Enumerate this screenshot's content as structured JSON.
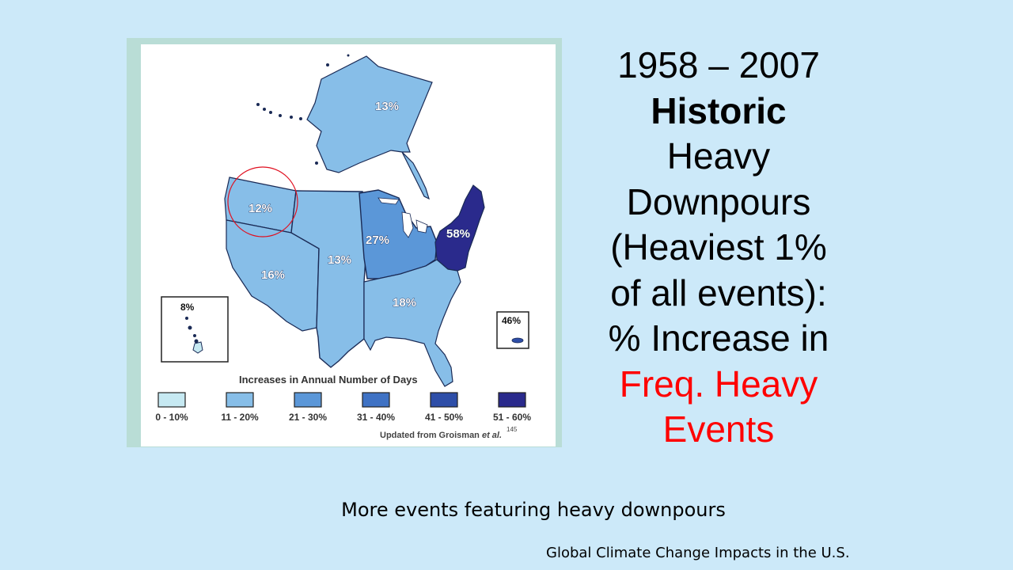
{
  "slide": {
    "title_lines": [
      "1958 – 2007",
      "Historic",
      "Heavy",
      "Downpours",
      "(Heaviest 1%",
      "of all events):",
      "% Increase in",
      "Freq. Heavy",
      "Events"
    ],
    "caption": "More events featuring heavy downpours",
    "source_note": "Global Climate Change Impacts in the U.S."
  },
  "map": {
    "regions": [
      {
        "name": "Alaska",
        "label": "13%",
        "class": "11 - 20%"
      },
      {
        "name": "Northwest",
        "label": "12%",
        "class": "11 - 20%",
        "highlighted": true
      },
      {
        "name": "Southwest",
        "label": "16%",
        "class": "11 - 20%"
      },
      {
        "name": "Great Plains",
        "label": "13%",
        "class": "11 - 20%"
      },
      {
        "name": "Midwest",
        "label": "27%",
        "class": "21 - 30%"
      },
      {
        "name": "Northeast",
        "label": "58%",
        "class": "51 - 60%"
      },
      {
        "name": "Southeast",
        "label": "18%",
        "class": "11 - 20%"
      },
      {
        "name": "Hawaii",
        "label": "8%",
        "class": "0 - 10%"
      },
      {
        "name": "Puerto Rico",
        "label": "46%",
        "class": "41 - 50%"
      }
    ],
    "legend": {
      "title": "Increases in Annual Number of Days",
      "items": [
        {
          "label": "0 - 10%",
          "color": "#c6e9f2"
        },
        {
          "label": "11 - 20%",
          "color": "#87bee8"
        },
        {
          "label": "21 - 30%",
          "color": "#5b97d8"
        },
        {
          "label": "31 - 40%",
          "color": "#3f72c4"
        },
        {
          "label": "41 - 50%",
          "color": "#2e4ea8"
        },
        {
          "label": "51 - 60%",
          "color": "#2a2a8c"
        }
      ]
    },
    "source": "Updated from Groisman",
    "source_etal": " et al.",
    "source_ref": "145"
  },
  "colors": {
    "background": "#cce9f9",
    "highlight_circle": "#e01020",
    "title_red": "#ff0000"
  }
}
